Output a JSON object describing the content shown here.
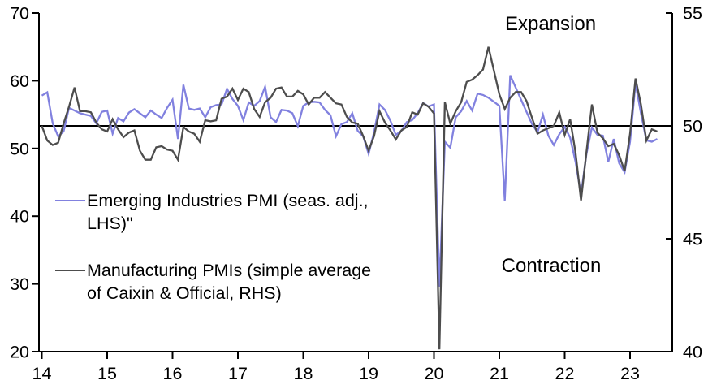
{
  "chart_data": {
    "type": "line",
    "title": "",
    "x_start": "2014-01",
    "x_step_months": 1,
    "x_axis": {
      "tick_labels": [
        "14",
        "15",
        "16",
        "17",
        "18",
        "19",
        "20",
        "21",
        "22",
        "23"
      ],
      "tick_years": [
        2014,
        2015,
        2016,
        2017,
        2018,
        2019,
        2020,
        2021,
        2022,
        2023
      ],
      "range_years": [
        2014.0,
        2023.65
      ]
    },
    "left_axis": {
      "ticks": [
        70,
        60,
        50,
        40,
        30,
        20
      ],
      "range": [
        20,
        70
      ]
    },
    "right_axis": {
      "ticks": [
        55,
        50,
        45,
        40
      ],
      "range": [
        40,
        55
      ]
    },
    "reference_line": {
      "value_rhs": 50,
      "value_lhs": 53.33,
      "color": "#000000"
    },
    "annotations": [
      {
        "id": "expansion",
        "text": "Expansion"
      },
      {
        "id": "contraction",
        "text": "Contraction"
      }
    ],
    "legend": {
      "position": "inside-left-middle",
      "entries": [
        {
          "label_display": "Emerging Industries PMI (seas. adj.,\nLHS)\"",
          "color": "#8181DF"
        },
        {
          "label_display": "Manufacturing PMIs (simple average\nof Caixin & Official, RHS)",
          "color": "#4D4D4D"
        }
      ]
    },
    "series": [
      {
        "name": "Emerging Industries PMI (seas. adj., LHS)\"",
        "axis": "left",
        "color": "#8181DF",
        "values": [
          57.8,
          58.3,
          53.7,
          51.8,
          52.5,
          56.0,
          55.6,
          55.2,
          55.0,
          54.8,
          53.7,
          55.4,
          55.6,
          52.2,
          54.5,
          54.0,
          55.3,
          55.8,
          55.2,
          54.6,
          55.6,
          55.0,
          54.5,
          56.0,
          57.2,
          51.4,
          59.4,
          55.9,
          55.7,
          55.9,
          54.6,
          56.1,
          56.4,
          56.5,
          58.8,
          57.3,
          56.3,
          54.2,
          56.8,
          56.3,
          57.0,
          59.1,
          54.6,
          53.9,
          55.7,
          55.6,
          55.2,
          53.3,
          56.3,
          56.8,
          56.9,
          56.8,
          55.7,
          54.9,
          51.8,
          53.6,
          53.9,
          55.2,
          52.6,
          51.8,
          49.2,
          52.4,
          56.5,
          55.7,
          54.1,
          52.0,
          52.6,
          53.9,
          54.2,
          55.2,
          56.7,
          56.2,
          56.5,
          29.6,
          51.0,
          50.1,
          54.6,
          55.5,
          57.0,
          55.6,
          58.1,
          57.9,
          57.5,
          56.9,
          56.3,
          42.3,
          60.8,
          59.0,
          57.2,
          55.4,
          53.6,
          52.4,
          55.0,
          51.9,
          50.5,
          52.1,
          53.2,
          51.6,
          48.0,
          43.2,
          49.2,
          53.1,
          52.0,
          51.9,
          48.0,
          51.4,
          47.8,
          46.5,
          51.0,
          59.6,
          55.2,
          51.2,
          51.0,
          51.4
        ]
      },
      {
        "name": "Manufacturing PMIs (simple average of Caixin & Official, RHS)",
        "axis": "right",
        "color": "#4D4D4D",
        "values": [
          50.0,
          49.35,
          49.15,
          49.25,
          50.1,
          50.85,
          51.7,
          50.65,
          50.65,
          50.6,
          50.15,
          49.85,
          49.75,
          50.3,
          49.85,
          49.5,
          49.7,
          49.8,
          48.9,
          48.5,
          48.5,
          49.05,
          49.1,
          48.95,
          48.9,
          48.5,
          49.95,
          49.75,
          49.65,
          49.3,
          50.25,
          50.2,
          50.25,
          51.2,
          51.3,
          51.65,
          51.15,
          51.65,
          51.5,
          50.75,
          50.4,
          51.05,
          51.25,
          51.65,
          51.7,
          51.3,
          51.3,
          51.55,
          51.4,
          50.95,
          51.25,
          51.25,
          51.5,
          51.25,
          51.0,
          50.95,
          50.4,
          50.15,
          50.1,
          49.55,
          48.9,
          49.55,
          50.65,
          50.15,
          49.8,
          49.4,
          49.8,
          49.95,
          50.6,
          50.5,
          51.0,
          50.85,
          50.55,
          40.1,
          51.05,
          50.1,
          50.65,
          51.05,
          51.95,
          52.05,
          52.25,
          52.5,
          53.5,
          52.45,
          51.4,
          50.75,
          51.25,
          51.5,
          51.5,
          51.1,
          50.35,
          49.65,
          49.8,
          49.9,
          50.0,
          50.6,
          49.6,
          50.3,
          48.8,
          46.7,
          48.85,
          50.95,
          49.7,
          49.45,
          49.1,
          49.2,
          48.7,
          48.0,
          49.65,
          52.1,
          50.95,
          49.35,
          49.85,
          49.75
        ]
      }
    ],
    "style": {
      "axis_color": "#000000",
      "background": "#ffffff",
      "grid": false
    }
  }
}
